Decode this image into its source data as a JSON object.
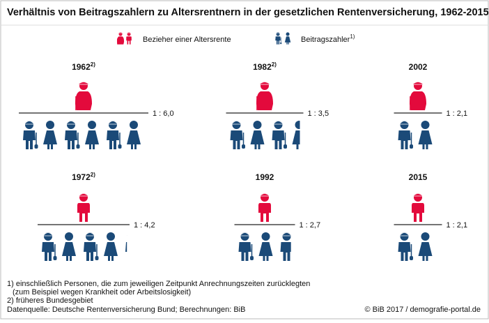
{
  "chart_data": {
    "type": "pictogram",
    "title": "Verhältnis von Beitragszahlern zu Altersrentnern in der gesetzlichen Rentenversicherung, 1962-2015",
    "legend": [
      {
        "name": "Bezieher einer Altersrente",
        "color": "#e30a3c"
      },
      {
        "name": "Beitragszahler",
        "note": "1)",
        "color": "#1b4a78"
      }
    ],
    "panels": [
      {
        "year": "1962",
        "note": "2)",
        "value": 6.0,
        "value_label": "1 : 6,0"
      },
      {
        "year": "1982",
        "note": "2)",
        "value": 3.5,
        "value_label": "1 : 3,5"
      },
      {
        "year": "2002",
        "value": 2.1,
        "value_label": "1 : 2,1"
      },
      {
        "year": "1972",
        "note": "2)",
        "value": 4.2,
        "value_label": "1 : 4,2"
      },
      {
        "year": "1992",
        "value": 2.7,
        "value_label": "1 : 2,7"
      },
      {
        "year": "2015",
        "value": 2.1,
        "value_label": "1 : 2,1"
      }
    ],
    "footnotes": [
      "1) einschließlich Personen, die zum jeweiligen Zeitpunkt Anrechnungszeiten zurücklegten",
      "(zum Beispiel wegen Krankheit oder Arbeitslosigkeit)",
      "2) früheres Bundesgebiet"
    ],
    "source": "Datenquelle: Deutsche Rentenversicherung Bund; Berechnungen: BiB",
    "copyright": "© BiB 2017 / demografie-portal.de"
  }
}
